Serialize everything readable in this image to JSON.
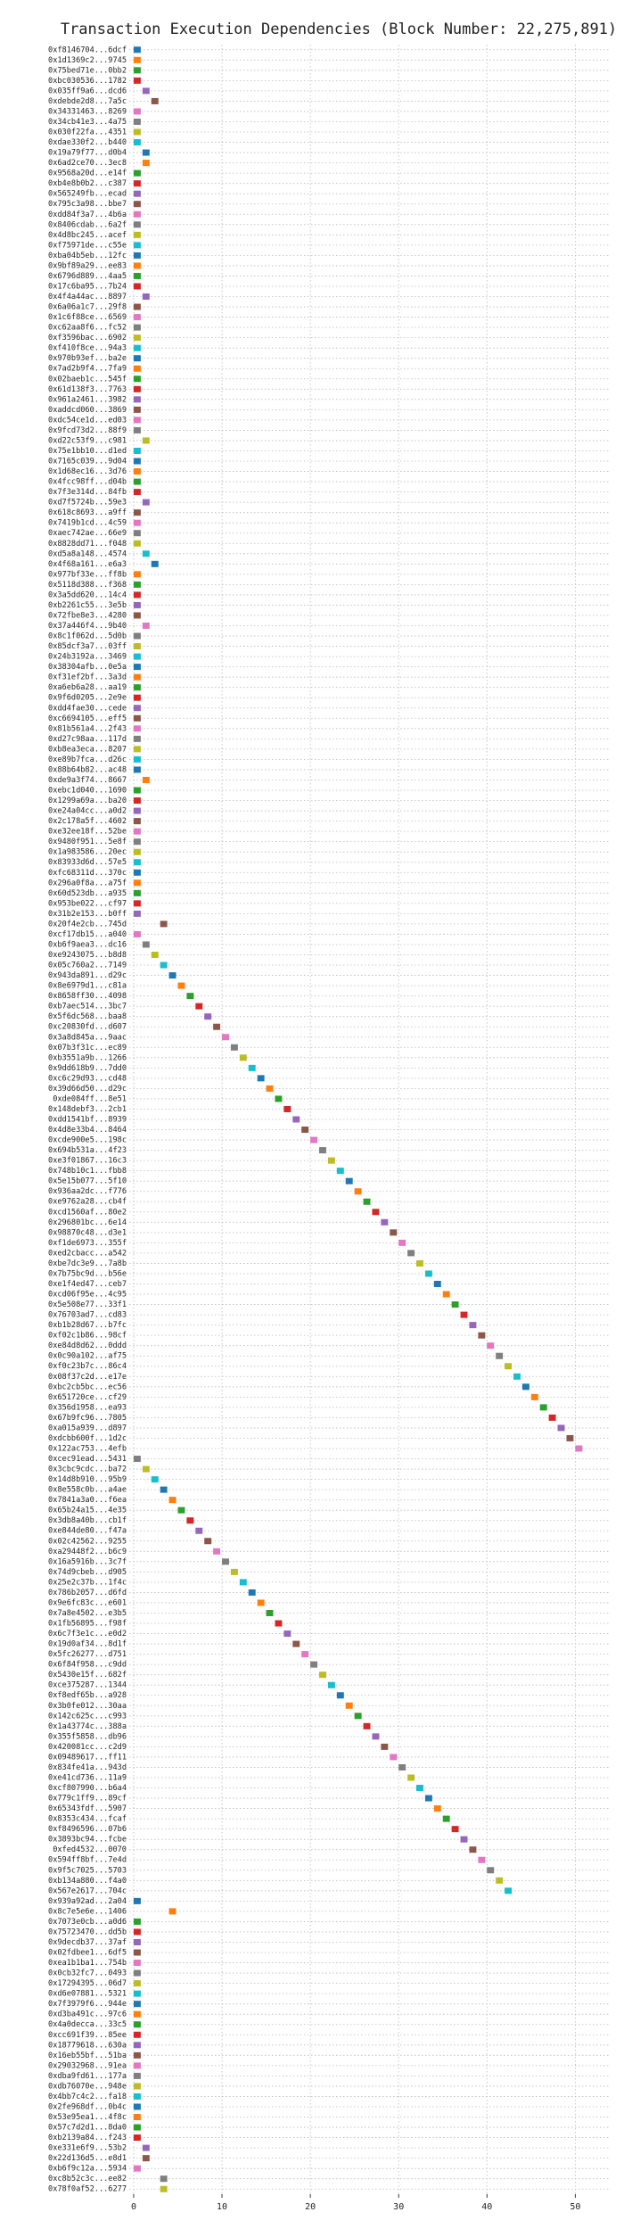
{
  "chart_data": {
    "type": "gantt",
    "title": "Transaction Execution Dependencies (Block Number: 22,275,891)",
    "categories": [
      "0xf8146704...6dcf",
      "0x1d1369c2...9745",
      "0x75bed71e...0bb2",
      "0xbc030536...1782",
      "0x035ff9a6...dcd6",
      "0xdebde2d8...7a5c",
      "0x34331463...8269",
      "0x34cb41e3...4a75",
      "0x030f22fa...4351",
      "0xdae330f2...b440",
      "0x19a79f77...d0b4",
      "0x6ad2ce70...3ec8",
      "0x9568a20d...e14f",
      "0xb4e8b0b2...c387",
      "0x565249fb...ecad",
      "0x795c3a98...bbe7",
      "0xdd84f3a7...4b6a",
      "0x8406cdab...6a2f",
      "0x4d8bc245...acef",
      "0xf75971de...c55e",
      "0xba04b5eb...12fc",
      "0x9bf89a29...ee83",
      "0x6796d889...4aa5",
      "0x17c6ba95...7b24",
      "0x4f4a44ac...8897",
      "0x6a06a1c7...29f8",
      "0x1c6f88ce...6569",
      "0xc62aa8f6...fc52",
      "0xf3596bac...6902",
      "0xf410f8ce...94a3",
      "0x970b93ef...ba2e",
      "0x7ad2b9f4...7fa9",
      "0x02baeb1c...545f",
      "0x61d138f3...7763",
      "0x961a2461...3982",
      "0xaddcd060...3869",
      "0xdc54ce1d...ed03",
      "0x9fcd73d2...88f9",
      "0xd22c53f9...c981",
      "0x75e1bb10...d1ed",
      "0x7165c039...9d04",
      "0x1d68ec16...3d76",
      "0x4fcc98ff...d04b",
      "0x7f3e314d...84fb",
      "0xd7f5724b...59e3",
      "0x618c8693...a9ff",
      "0x7419b1cd...4c59",
      "0xaec742ae...66e9",
      "0x8828dd71...f048",
      "0xd5a8a148...4574",
      "0x4f68a161...e6a3",
      "0x977bf33e...ff8b",
      "0x5118d388...f368",
      "0x3a5dd620...14c4",
      "0xb2261c55...3e5b",
      "0x72fbe8e3...4280",
      "0x37a446f4...9b40",
      "0x8c1f062d...5d0b",
      "0x85dcf3a7...03ff",
      "0x24b3192a...3469",
      "0x38304afb...0e5a",
      "0xf31ef2bf...3a3d",
      "0xa6eb6a28...aa19",
      "0x9f6d0205...2e9e",
      "0xdd4fae30...cede",
      "0xc6694105...eff5",
      "0x81b561a4...2f43",
      "0xd27c98aa...117d",
      "0xb8ea3eca...8207",
      "0xe89b7fca...d26c",
      "0x88b64b82...ac48",
      "0xde9a3f74...8667",
      "0xebc1d040...1690",
      "0x1299a69a...ba20",
      "0xe24a04cc...a0d2",
      "0x2c178a5f...4602",
      "0xe32ee18f...52be",
      "0x9480f951...5e8f",
      "0x1a983586...20ec",
      "0x83933d6d...57e5",
      "0xfc68311d...370c",
      "0x296a0f8a...a75f",
      "0x60d523db...a935",
      "0x953be022...cf97",
      "0x31b2e153...b0ff",
      "0x20f4e2cb...745d",
      "0xcf17db15...a040",
      "0xb6f9aea3...dc16",
      "0xe9243075...b8d8",
      "0x05c760a2...7149",
      "0x943da891...d29c",
      "0x8e6979d1...c81a",
      "0x8658ff30...4098",
      "0xb7aec514...3bc7",
      "0x5f6dc568...baa8",
      "0xc20830fd...d607",
      "0x3a8d845a...9aac",
      "0x07b3f31c...ec89",
      "0xb3551a9b...1266",
      "0x9dd618b9...7dd0",
      "0xc6c29d93...cd48",
      "0x39d66d50...d29c",
      "0xde084ff...8e51",
      "0x148debf3...2cb1",
      "0xdd1541bf...8939",
      "0x4d8e33b4...8464",
      "0xcde900e5...198c",
      "0x694b531a...4f23",
      "0xe3f01867...16c3",
      "0x748b10c1...fbb8",
      "0x5e15b077...5f10",
      "0x936aa2dc...f776",
      "0xe9762a28...cb4f",
      "0xcd1560af...80e2",
      "0x296801bc...6e14",
      "0x98870c48...d3e1",
      "0xf1de6973...355f",
      "0xed2cbacc...a542",
      "0xbe7dc3e9...7a8b",
      "0x7b75bc9d...b56e",
      "0xe1f4ed47...ceb7",
      "0xcd06f95e...4c95",
      "0x5e508e77...33f1",
      "0x76703ad7...cd83",
      "0xb1b28d67...b7fc",
      "0xf02c1b86...98cf",
      "0xe84d8d62...0ddd",
      "0x0c90a102...af75",
      "0xf0c23b7c...86c4",
      "0x08f37c2d...e17e",
      "0xbc2cb5bc...ec56",
      "0x651720ce...cf29",
      "0x356d1958...ea93",
      "0x67b9fc96...7805",
      "0xa015a939...d897",
      "0xdcbb600f...1d2c",
      "0x122ac753...4efb",
      "0xcec91ead...5431",
      "0x3cbc9cdc...ba72",
      "0x14d8b910...95b9",
      "0x8e558c0b...a4ae",
      "0x7841a3a0...f6ea",
      "0x65b24a15...4e35",
      "0x3db8a40b...cb1f",
      "0xe844de80...f47a",
      "0x02c42562...9255",
      "0xa29448f2...b6c9",
      "0x16a5916b...3c7f",
      "0x74d9cbeb...d905",
      "0x25e2c37b...1f4c",
      "0x786b2057...d6fd",
      "0x9e6fc83c...e601",
      "0x7a8e4502...e3b5",
      "0x1fb56895...f98f",
      "0x6c7f3e1c...e0d2",
      "0x19d0af34...8d1f",
      "0x5fc26277...d751",
      "0x6f84f958...c9dd",
      "0x5430e15f...682f",
      "0xce375287...1344",
      "0xf8edf65b...a928",
      "0x3b0fe012...30aa",
      "0x142c625c...c993",
      "0x1a43774c...388a",
      "0x355f5858...db96",
      "0x420081cc...c2d9",
      "0x09489617...ff11",
      "0x834fe41a...943d",
      "0xe41cd736...11a9",
      "0xcf807990...b6a4",
      "0x779c1ff9...89cf",
      "0x65343fdf...5907",
      "0x8353c434...fcaf",
      "0xf8496596...07b6",
      "0x3893bc94...fcbe",
      "0xfed4532...0070",
      "0x594ff8bf...7e4d",
      "0x9f5c7025...5703",
      "0xb134a880...f4a0",
      "0x567e2617...704c",
      "0x939a92ad...2a04",
      "0x8c7e5e6e...1406",
      "0x7073e0cb...a0d6",
      "0x75723470...dd5b",
      "0x9decdb37...37af",
      "0x02fdbee1...6df5",
      "0xea1b1ba1...754b",
      "0x0cb32fc7...0493",
      "0x17294395...06d7",
      "0xd6e07881...5321",
      "0x7f3979f6...944e",
      "0xd3ba491c...97c6",
      "0x4a0decca...33c5",
      "0xcc691f39...85ee",
      "0x18779618...630a",
      "0x16eb55bf...51ba",
      "0x29032968...91ea",
      "0xdba9fd61...177a",
      "0xdb76070e...948e",
      "0x4bb7c4c2...fa18",
      "0x2fe968df...0b4c",
      "0x53e95ea1...4f8c",
      "0x57c7d2d1...8da0",
      "0xb2139a84...f243",
      "0xe331e6f9...53b2",
      "0x22d136d5...e8d1",
      "0xb6f9c12a...5934",
      "0xc8b52c3c...ee82",
      "0x78f0af52...6277"
    ],
    "starts": [
      0,
      0,
      0,
      0,
      1,
      2,
      0,
      0,
      0,
      0,
      1,
      1,
      0,
      0,
      0,
      0,
      0,
      0,
      0,
      0,
      0,
      0,
      0,
      0,
      1,
      0,
      0,
      0,
      0,
      0,
      0,
      0,
      0,
      0,
      0,
      0,
      0,
      0,
      1,
      0,
      0,
      0,
      0,
      0,
      1,
      0,
      0,
      0,
      0,
      1,
      2,
      0,
      0,
      0,
      0,
      0,
      1,
      0,
      0,
      0,
      0,
      0,
      0,
      0,
      0,
      0,
      0,
      0,
      0,
      0,
      0,
      1,
      0,
      0,
      0,
      0,
      0,
      0,
      0,
      0,
      0,
      0,
      0,
      0,
      0,
      3,
      0,
      1,
      2,
      3,
      4,
      5,
      6,
      7,
      8,
      9,
      10,
      11,
      12,
      13,
      14,
      15,
      16,
      17,
      18,
      19,
      20,
      21,
      22,
      23,
      24,
      25,
      26,
      27,
      28,
      29,
      30,
      31,
      32,
      33,
      34,
      35,
      36,
      37,
      38,
      39,
      40,
      41,
      42,
      43,
      44,
      45,
      46,
      47,
      48,
      49,
      50,
      0,
      1,
      2,
      3,
      4,
      5,
      6,
      7,
      8,
      9,
      10,
      11,
      12,
      13,
      14,
      15,
      16,
      17,
      18,
      19,
      20,
      21,
      22,
      23,
      24,
      25,
      26,
      27,
      28,
      29,
      30,
      31,
      32,
      33,
      34,
      35,
      36,
      37,
      38,
      39,
      40,
      41,
      42,
      0,
      4,
      0,
      0,
      0,
      0,
      0,
      0,
      0,
      0,
      0,
      0,
      0,
      0,
      0,
      0,
      0,
      0,
      0,
      0,
      0,
      0,
      0,
      0,
      1,
      1,
      0,
      3,
      3
    ],
    "ends": [
      1,
      1,
      1,
      1,
      2,
      3,
      1,
      1,
      1,
      1,
      2,
      2,
      1,
      1,
      1,
      1,
      1,
      1,
      1,
      1,
      1,
      1,
      1,
      1,
      2,
      1,
      1,
      1,
      1,
      1,
      1,
      1,
      1,
      1,
      1,
      1,
      1,
      1,
      2,
      1,
      1,
      1,
      1,
      1,
      2,
      1,
      1,
      1,
      1,
      2,
      3,
      1,
      1,
      1,
      1,
      1,
      2,
      1,
      1,
      1,
      1,
      1,
      1,
      1,
      1,
      1,
      1,
      1,
      1,
      1,
      1,
      2,
      1,
      1,
      1,
      1,
      1,
      1,
      1,
      1,
      1,
      1,
      1,
      1,
      1,
      4,
      1,
      2,
      3,
      4,
      5,
      6,
      7,
      8,
      9,
      10,
      11,
      12,
      13,
      14,
      15,
      16,
      17,
      18,
      19,
      20,
      21,
      22,
      23,
      24,
      25,
      26,
      27,
      28,
      29,
      30,
      31,
      32,
      33,
      34,
      35,
      36,
      37,
      38,
      39,
      40,
      41,
      42,
      43,
      44,
      45,
      46,
      47,
      48,
      49,
      50,
      51,
      1,
      2,
      3,
      4,
      5,
      6,
      7,
      8,
      9,
      10,
      11,
      12,
      13,
      14,
      15,
      16,
      17,
      18,
      19,
      20,
      21,
      22,
      23,
      24,
      25,
      26,
      27,
      28,
      29,
      30,
      31,
      32,
      33,
      34,
      35,
      36,
      37,
      38,
      39,
      40,
      41,
      42,
      43,
      1,
      5,
      1,
      1,
      1,
      1,
      1,
      1,
      1,
      1,
      1,
      1,
      1,
      1,
      1,
      1,
      1,
      1,
      1,
      1,
      1,
      1,
      1,
      1,
      2,
      2,
      1,
      4,
      4
    ],
    "colors": [
      "#1f77b4",
      "#ff7f0e",
      "#2ca02c",
      "#d62728",
      "#9467bd",
      "#8c564b",
      "#e377c2",
      "#7f7f7f",
      "#bcbd22",
      "#17becf"
    ],
    "xlim": [
      -0.5,
      54
    ],
    "xticks": [
      0,
      10,
      20,
      30,
      40,
      50
    ],
    "grid": true
  }
}
